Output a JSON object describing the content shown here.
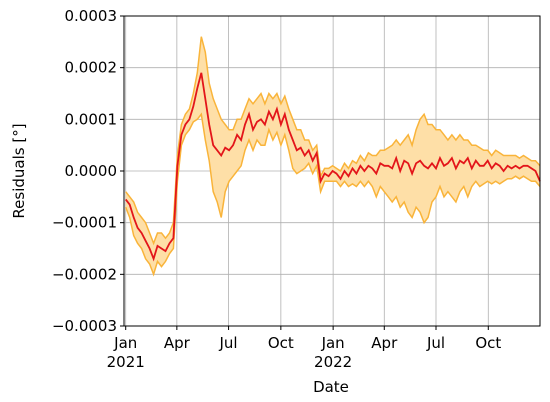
{
  "chart_data": {
    "type": "area",
    "title": "",
    "xlabel": "Date",
    "ylabel": "Residuals [°]",
    "x_range": [
      "2020-12-29",
      "2022-12-31"
    ],
    "ylim": [
      -0.0003,
      0.0003
    ],
    "y_ticks": [
      -0.0003,
      -0.0002,
      -0.0001,
      0.0,
      0.0001,
      0.0002,
      0.0003
    ],
    "y_tick_labels": [
      "−0.0003",
      "−0.0002",
      "−0.0001",
      "0.0000",
      "0.0001",
      "0.0002",
      "0.0003"
    ],
    "x_ticks": [
      {
        "date": "2021-01-01",
        "label": "Jan",
        "year": "2021"
      },
      {
        "date": "2021-04-01",
        "label": "Apr",
        "year": ""
      },
      {
        "date": "2021-07-01",
        "label": "Jul",
        "year": ""
      },
      {
        "date": "2021-10-01",
        "label": "Oct",
        "year": ""
      },
      {
        "date": "2022-01-01",
        "label": "Jan",
        "year": "2022"
      },
      {
        "date": "2022-04-01",
        "label": "Apr",
        "year": ""
      },
      {
        "date": "2022-07-01",
        "label": "Jul",
        "year": ""
      },
      {
        "date": "2022-10-01",
        "label": "Oct",
        "year": ""
      }
    ],
    "grid": true,
    "colors": {
      "line": "#e3151a",
      "band_fill": "#fedfa7",
      "band_edge": "#f9b43a"
    },
    "series": [
      {
        "x": [
          "2021-01-01",
          "2021-01-08",
          "2021-01-15",
          "2021-01-22",
          "2021-01-29",
          "2021-02-05",
          "2021-02-12",
          "2021-02-19",
          "2021-02-26",
          "2021-03-05",
          "2021-03-12",
          "2021-03-19",
          "2021-03-26",
          "2021-04-02",
          "2021-04-09",
          "2021-04-16",
          "2021-04-23",
          "2021-04-30",
          "2021-05-07",
          "2021-05-14",
          "2021-05-21",
          "2021-05-28",
          "2021-06-04",
          "2021-06-11",
          "2021-06-18",
          "2021-06-25",
          "2021-07-02",
          "2021-07-09",
          "2021-07-16",
          "2021-07-23",
          "2021-07-30",
          "2021-08-06",
          "2021-08-13",
          "2021-08-20",
          "2021-08-27",
          "2021-09-03",
          "2021-09-10",
          "2021-09-17",
          "2021-09-24",
          "2021-10-01",
          "2021-10-08",
          "2021-10-15",
          "2021-10-22",
          "2021-10-29",
          "2021-11-05",
          "2021-11-12",
          "2021-11-19",
          "2021-11-26",
          "2021-12-03",
          "2021-12-10",
          "2021-12-17",
          "2021-12-24",
          "2021-12-31",
          "2022-01-07",
          "2022-01-14",
          "2022-01-21",
          "2022-01-28",
          "2022-02-04",
          "2022-02-11",
          "2022-02-18",
          "2022-02-25",
          "2022-03-04",
          "2022-03-11",
          "2022-03-18",
          "2022-03-25",
          "2022-04-01",
          "2022-04-08",
          "2022-04-15",
          "2022-04-22",
          "2022-04-29",
          "2022-05-06",
          "2022-05-13",
          "2022-05-20",
          "2022-05-27",
          "2022-06-03",
          "2022-06-10",
          "2022-06-17",
          "2022-06-24",
          "2022-07-01",
          "2022-07-08",
          "2022-07-15",
          "2022-07-22",
          "2022-07-29",
          "2022-08-05",
          "2022-08-12",
          "2022-08-19",
          "2022-08-26",
          "2022-09-02",
          "2022-09-09",
          "2022-09-16",
          "2022-09-23",
          "2022-09-30",
          "2022-10-07",
          "2022-10-14",
          "2022-10-21",
          "2022-10-28",
          "2022-11-04",
          "2022-11-11",
          "2022-11-18",
          "2022-11-25",
          "2022-12-02",
          "2022-12-09",
          "2022-12-16",
          "2022-12-23",
          "2022-12-31"
        ],
        "mean": [
          -5.5e-05,
          -6.5e-05,
          -9e-05,
          -0.00011,
          -0.00012,
          -0.000135,
          -0.00015,
          -0.00017,
          -0.000145,
          -0.00015,
          -0.000155,
          -0.00014,
          -0.00013,
          1e-05,
          7e-05,
          9e-05,
          0.0001,
          0.000125,
          0.00016,
          0.00019,
          0.00014,
          9e-05,
          5e-05,
          4e-05,
          3e-05,
          4.5e-05,
          4e-05,
          5e-05,
          7e-05,
          6e-05,
          9e-05,
          0.00011,
          8e-05,
          9.5e-05,
          0.0001,
          9e-05,
          0.000115,
          0.0001,
          0.00012,
          9e-05,
          0.00011,
          8e-05,
          6e-05,
          4e-05,
          4.5e-05,
          3e-05,
          4e-05,
          2e-05,
          3.5e-05,
          -2e-05,
          -5e-06,
          -1e-05,
          0.0,
          -5e-06,
          -1.5e-05,
          0.0,
          -1e-05,
          5e-06,
          -5e-06,
          1e-05,
          0.0,
          1e-05,
          5e-06,
          -5e-06,
          1.5e-05,
          1e-05,
          1e-05,
          5e-06,
          2.5e-05,
          0.0,
          2e-05,
          1.5e-05,
          -5e-06,
          1.5e-05,
          2e-05,
          1e-05,
          5e-06,
          1.5e-05,
          5e-06,
          2.5e-05,
          1e-05,
          1.5e-05,
          2.5e-05,
          5e-06,
          2e-05,
          1.5e-05,
          2.5e-05,
          5e-06,
          2e-05,
          1e-05,
          1e-05,
          2e-05,
          5e-06,
          1.5e-05,
          1e-05,
          0.0,
          1e-05,
          5e-06,
          1e-05,
          5e-06,
          1e-05,
          1e-05,
          5e-06,
          0.0,
          -2e-05
        ],
        "lower": [
          -7e-05,
          -9e-05,
          -0.000125,
          -0.00014,
          -0.00015,
          -0.00017,
          -0.00018,
          -0.0002,
          -0.000175,
          -0.000185,
          -0.000175,
          -0.00016,
          -0.00015,
          -2e-05,
          5e-05,
          7e-05,
          8e-05,
          9.5e-05,
          0.0001,
          0.00011,
          6e-05,
          2e-05,
          -4e-05,
          -6e-05,
          -9e-05,
          -4e-05,
          -2e-05,
          -1e-05,
          0.0,
          1e-05,
          4e-05,
          6e-05,
          4e-05,
          6e-05,
          5e-05,
          5e-05,
          8e-05,
          6e-05,
          7.5e-05,
          5e-05,
          7e-05,
          4e-05,
          5e-06,
          -5e-06,
          0.0,
          5e-06,
          1.5e-05,
          -5e-06,
          1e-05,
          -4e-05,
          -2e-05,
          -2e-05,
          -2e-05,
          -2e-05,
          -3e-05,
          -2e-05,
          -3e-05,
          -2.5e-05,
          -3e-05,
          -2e-05,
          -3e-05,
          -2e-05,
          -3e-05,
          -5e-05,
          -3e-05,
          -4e-05,
          -5e-05,
          -6e-05,
          -5e-05,
          -7e-05,
          -6e-05,
          -8e-05,
          -9e-05,
          -7e-05,
          -8e-05,
          -0.0001,
          -9e-05,
          -6e-05,
          -5e-05,
          -3e-05,
          -5e-05,
          -4e-05,
          -5e-05,
          -6e-05,
          -4e-05,
          -3e-05,
          -5e-05,
          -3e-05,
          -2e-05,
          -3e-05,
          -2.5e-05,
          -2e-05,
          -2.5e-05,
          -2e-05,
          -2.5e-05,
          -2e-05,
          -1.5e-05,
          -1.5e-05,
          -1e-05,
          -1.5e-05,
          -1e-05,
          -1.5e-05,
          -2e-05,
          -2e-05,
          -3e-05
        ],
        "upper": [
          -4e-05,
          -5e-05,
          -6e-05,
          -8e-05,
          -9e-05,
          -0.0001,
          -0.00012,
          -0.00014,
          -0.00012,
          -0.00012,
          -0.00013,
          -0.00012,
          -0.0001,
          3e-05,
          9e-05,
          0.00011,
          0.00012,
          0.00015,
          0.00019,
          0.00026,
          0.00023,
          0.00017,
          0.00014,
          0.00012,
          0.0001,
          9e-05,
          8e-05,
          8e-05,
          0.0001,
          0.0001,
          0.00012,
          0.00014,
          0.00013,
          0.00014,
          0.00015,
          0.00013,
          0.00015,
          0.00014,
          0.00015,
          0.00013,
          0.000145,
          0.00012,
          0.0001,
          8e-05,
          8e-05,
          6e-05,
          6e-05,
          4e-05,
          5e-05,
          -1e-05,
          5e-06,
          5e-06,
          1e-05,
          5e-06,
          0.0,
          1.5e-05,
          5e-06,
          2e-05,
          1.5e-05,
          3e-05,
          2e-05,
          3.5e-05,
          3e-05,
          3e-05,
          4e-05,
          4e-05,
          4.5e-05,
          5e-05,
          6e-05,
          5e-05,
          6e-05,
          7e-05,
          5e-05,
          8e-05,
          0.0001,
          0.00011,
          9e-05,
          9e-05,
          8e-05,
          8e-05,
          7e-05,
          6e-05,
          7e-05,
          6e-05,
          7e-05,
          6e-05,
          6e-05,
          5e-05,
          5e-05,
          4.5e-05,
          4e-05,
          4e-05,
          3e-05,
          4e-05,
          3.5e-05,
          3e-05,
          3e-05,
          3e-05,
          3e-05,
          2.5e-05,
          3e-05,
          2.5e-05,
          2e-05,
          2e-05,
          1e-05
        ]
      }
    ]
  }
}
